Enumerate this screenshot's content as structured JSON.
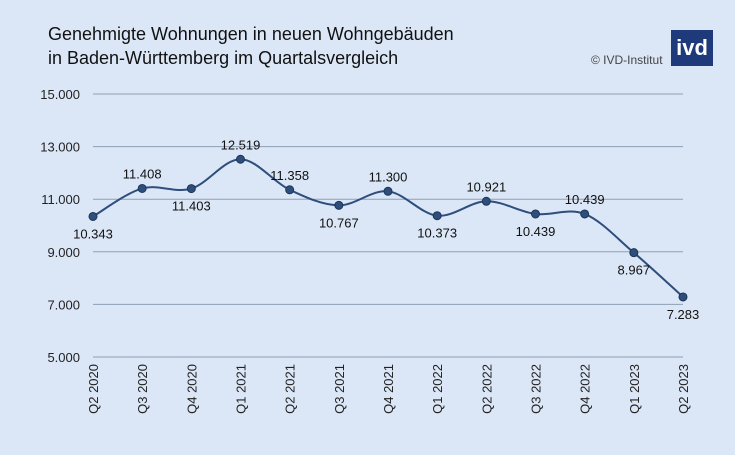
{
  "title_line1": "Genehmigte Wohnungen in neuen Wohngebäuden",
  "title_line2": "in Baden-Württemberg im Quartalsvergleich",
  "copyright": "© IVD-Institut",
  "logo_text": "ivd",
  "colors": {
    "line": "#2e4e7c",
    "grid": "#8f9fb3",
    "background": "#dbe7f7"
  },
  "chart_data": {
    "type": "line",
    "categories": [
      "Q2 2020",
      "Q3 2020",
      "Q4 2020",
      "Q1 2021",
      "Q2 2021",
      "Q3 2021",
      "Q4 2021",
      "Q1 2022",
      "Q2 2022",
      "Q3 2022",
      "Q4 2022",
      "Q1 2023",
      "Q2 2023"
    ],
    "values": [
      10343,
      11408,
      11403,
      12519,
      11358,
      10767,
      11300,
      10373,
      10921,
      10439,
      10439,
      8967,
      7283
    ],
    "value_labels": [
      "10.343",
      "11.408",
      "11.403",
      "12.519",
      "11.358",
      "10.767",
      "11.300",
      "10.373",
      "10.921",
      "10.439",
      "10.439",
      "8.967",
      "7.283"
    ],
    "label_positions": [
      "below",
      "above",
      "below",
      "above",
      "above",
      "below",
      "above",
      "below",
      "above",
      "below",
      "above",
      "below",
      "below"
    ],
    "yticks": [
      5000,
      7000,
      9000,
      11000,
      13000,
      15000
    ],
    "ytick_labels": [
      "5.000",
      "7.000",
      "9.000",
      "11.000",
      "13.000",
      "15.000"
    ],
    "ylim": [
      5000,
      15000
    ],
    "grid": true,
    "smooth": true,
    "xlabel": "",
    "ylabel": ""
  }
}
